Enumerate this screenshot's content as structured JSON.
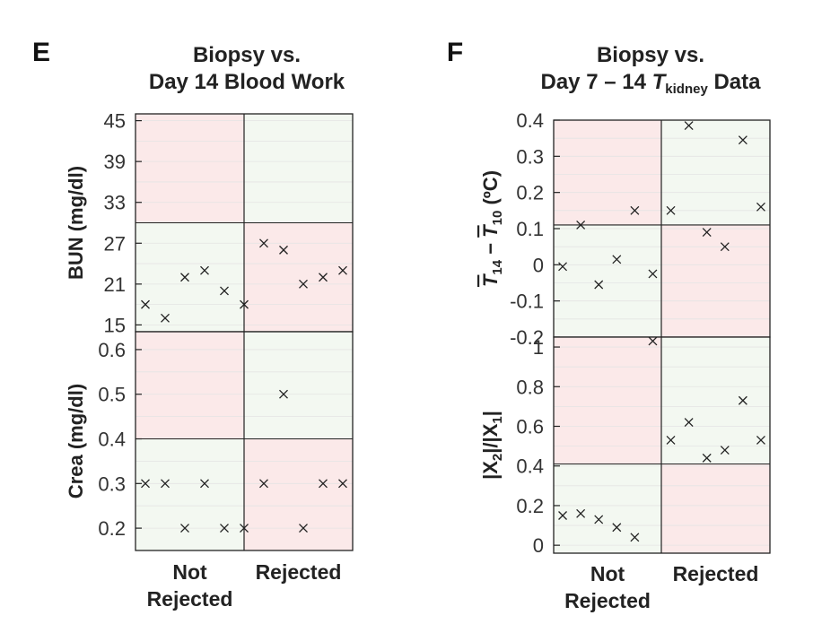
{
  "colors": {
    "red": "#fbe9e9",
    "green": "#f3f8f1",
    "frame": "#222222",
    "grid": "#e4e4e4"
  },
  "chart_data": [
    {
      "panel": "E",
      "title": "Biopsy vs.",
      "subtitle": "Day 14 Blood Work",
      "type": "scatter",
      "categories": [
        "Not Rejected",
        "Rejected"
      ],
      "category_lines": [
        [
          "Not",
          "Rejected"
        ],
        [
          "Rejected"
        ]
      ],
      "subplots": [
        {
          "ylabel": "BUN (mg/dl)",
          "ylim": [
            14,
            46
          ],
          "ticks": [
            15,
            21,
            27,
            33,
            39,
            45
          ],
          "threshold": 30,
          "points": [
            {
              "x": 1,
              "y": 18
            },
            {
              "x": 2,
              "y": 16
            },
            {
              "x": 3,
              "y": 22
            },
            {
              "x": 4,
              "y": 23
            },
            {
              "x": 5,
              "y": 20
            },
            {
              "x": 6,
              "y": 18
            },
            {
              "x": 7,
              "y": 27
            },
            {
              "x": 8,
              "y": 26
            },
            {
              "x": 9,
              "y": 21
            },
            {
              "x": 10,
              "y": 22
            },
            {
              "x": 11,
              "y": 23
            }
          ]
        },
        {
          "ylabel": "Crea (mg/dl)",
          "ylim": [
            0.15,
            0.64
          ],
          "ticks": [
            0.2,
            0.3,
            0.4,
            0.5,
            0.6
          ],
          "threshold": 0.4,
          "points": [
            {
              "x": 1,
              "y": 0.3
            },
            {
              "x": 2,
              "y": 0.3
            },
            {
              "x": 3,
              "y": 0.2
            },
            {
              "x": 4,
              "y": 0.3
            },
            {
              "x": 5,
              "y": 0.2
            },
            {
              "x": 6,
              "y": 0.2
            },
            {
              "x": 7,
              "y": 0.3
            },
            {
              "x": 8,
              "y": 0.5
            },
            {
              "x": 9,
              "y": 0.2
            },
            {
              "x": 10,
              "y": 0.3
            },
            {
              "x": 11,
              "y": 0.3
            }
          ]
        }
      ]
    },
    {
      "panel": "F",
      "title": "Biopsy vs.",
      "subtitle": "Day 7 – 14 T",
      "subtitle_sub": "kidney",
      "subtitle_end": " Data",
      "type": "scatter",
      "categories": [
        "Not Rejected",
        "Rejected"
      ],
      "category_lines": [
        [
          "Not",
          "Rejected"
        ],
        [
          "Rejected"
        ]
      ],
      "subplots": [
        {
          "ylabel": "T14 − T10 (°C)",
          "ylabel_parts": [
            "T",
            "14",
            " − ",
            "T",
            "10",
            " (ºC)"
          ],
          "ylim": [
            -0.2,
            0.4
          ],
          "ticks": [
            -0.2,
            -0.1,
            0,
            0.1,
            0.2,
            0.3,
            0.4
          ],
          "tick_labels": [
            "-0.2",
            "-0.1",
            "0",
            "0.1",
            "0.2",
            "0.3",
            "0.4"
          ],
          "threshold": 0.11,
          "points": [
            {
              "x": 1,
              "y": -0.005
            },
            {
              "x": 2,
              "y": 0.11
            },
            {
              "x": 3,
              "y": -0.055
            },
            {
              "x": 4,
              "y": 0.015
            },
            {
              "x": 5,
              "y": 0.15
            },
            {
              "x": 6,
              "y": -0.025
            },
            {
              "x": 7,
              "y": 0.15
            },
            {
              "x": 8,
              "y": 0.385
            },
            {
              "x": 9,
              "y": 0.09
            },
            {
              "x": 10,
              "y": 0.05
            },
            {
              "x": 11,
              "y": 0.345
            },
            {
              "x": 12,
              "y": 0.16
            }
          ]
        },
        {
          "ylabel": "|X2|/|X1|",
          "ylabel_parts": [
            "|X",
            "2",
            "|/|X",
            "1",
            "|"
          ],
          "ylim": [
            -0.04,
            1.05
          ],
          "ticks": [
            0,
            0.2,
            0.4,
            0.6,
            0.8,
            1
          ],
          "tick_labels": [
            "0",
            "0.2",
            "0.4",
            "0.6",
            "0.8",
            "1"
          ],
          "threshold": 0.41,
          "points": [
            {
              "x": 1,
              "y": 0.15
            },
            {
              "x": 2,
              "y": 0.16
            },
            {
              "x": 3,
              "y": 0.13
            },
            {
              "x": 4,
              "y": 0.09
            },
            {
              "x": 5,
              "y": 0.04
            },
            {
              "x": 6,
              "y": 1.03
            },
            {
              "x": 7,
              "y": 0.53
            },
            {
              "x": 8,
              "y": 0.62
            },
            {
              "x": 9,
              "y": 0.44
            },
            {
              "x": 10,
              "y": 0.48
            },
            {
              "x": 11,
              "y": 0.73
            },
            {
              "x": 12,
              "y": 0.53
            }
          ]
        }
      ]
    }
  ]
}
